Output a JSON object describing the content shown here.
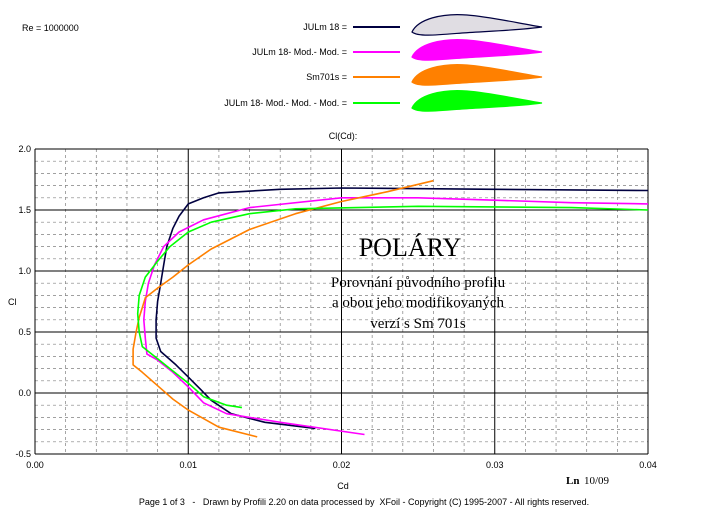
{
  "chart_data": {
    "type": "line",
    "reynolds": "Re = 1000000",
    "title": "Cl(Cd):",
    "xlabel": "Cd",
    "ylabel": "Cl",
    "xlim": [
      0.0,
      0.04
    ],
    "ylim": [
      -0.5,
      2.0
    ],
    "x_ticks": [
      0.0,
      0.01,
      0.02,
      0.03,
      0.04
    ],
    "x_tick_labels": [
      "0.00",
      "0.01",
      "0.02",
      "0.03",
      "0.04"
    ],
    "y_ticks": [
      -0.5,
      0.0,
      0.5,
      1.0,
      1.5,
      2.0
    ],
    "y_tick_labels": [
      "-0.5",
      "0.0",
      "0.5",
      "1.0",
      "1.5",
      "2.0"
    ],
    "grid": true,
    "legend_position": "top",
    "series": [
      {
        "name": "JULm 18 =",
        "color": "#000040",
        "airfoil_fill": "#e0dde3",
        "points": [
          [
            0.0183,
            -0.29
          ],
          [
            0.015,
            -0.24
          ],
          [
            0.0128,
            -0.17
          ],
          [
            0.0115,
            -0.06
          ],
          [
            0.0108,
            0.03
          ],
          [
            0.01,
            0.13
          ],
          [
            0.0092,
            0.23
          ],
          [
            0.0082,
            0.34
          ],
          [
            0.0079,
            0.45
          ],
          [
            0.0079,
            0.6
          ],
          [
            0.008,
            0.75
          ],
          [
            0.0082,
            0.9
          ],
          [
            0.0084,
            1.05
          ],
          [
            0.0086,
            1.2
          ],
          [
            0.009,
            1.35
          ],
          [
            0.0094,
            1.45
          ],
          [
            0.01,
            1.55
          ],
          [
            0.011,
            1.6
          ],
          [
            0.012,
            1.64
          ],
          [
            0.016,
            1.67
          ],
          [
            0.02,
            1.68
          ],
          [
            0.03,
            1.67
          ],
          [
            0.04,
            1.66
          ]
        ]
      },
      {
        "name": "JULm 18- Mod.- Mod. =",
        "color": "#ff00ff",
        "airfoil_fill": "#ff00ff",
        "points": [
          [
            0.0215,
            -0.34
          ],
          [
            0.016,
            -0.24
          ],
          [
            0.0125,
            -0.17
          ],
          [
            0.011,
            -0.08
          ],
          [
            0.01,
            0.05
          ],
          [
            0.009,
            0.17
          ],
          [
            0.008,
            0.27
          ],
          [
            0.0073,
            0.32
          ],
          [
            0.0072,
            0.45
          ],
          [
            0.0071,
            0.6
          ],
          [
            0.0072,
            0.75
          ],
          [
            0.0074,
            0.9
          ],
          [
            0.0078,
            1.05
          ],
          [
            0.0084,
            1.2
          ],
          [
            0.0094,
            1.32
          ],
          [
            0.011,
            1.42
          ],
          [
            0.014,
            1.52
          ],
          [
            0.02,
            1.6
          ],
          [
            0.025,
            1.6
          ],
          [
            0.03,
            1.58
          ],
          [
            0.035,
            1.56
          ],
          [
            0.04,
            1.55
          ]
        ]
      },
      {
        "name": "Sm701s =",
        "color": "#ff8000",
        "airfoil_fill": "#ff8000",
        "points": [
          [
            0.0145,
            -0.36
          ],
          [
            0.012,
            -0.28
          ],
          [
            0.01,
            -0.14
          ],
          [
            0.009,
            -0.05
          ],
          [
            0.008,
            0.06
          ],
          [
            0.007,
            0.17
          ],
          [
            0.0064,
            0.23
          ],
          [
            0.0064,
            0.36
          ],
          [
            0.0066,
            0.5
          ],
          [
            0.0068,
            0.62
          ],
          [
            0.007,
            0.7
          ],
          [
            0.0072,
            0.78
          ],
          [
            0.008,
            0.86
          ],
          [
            0.009,
            0.95
          ],
          [
            0.01,
            1.05
          ],
          [
            0.0115,
            1.18
          ],
          [
            0.014,
            1.34
          ],
          [
            0.017,
            1.47
          ],
          [
            0.02,
            1.57
          ],
          [
            0.023,
            1.65
          ],
          [
            0.026,
            1.74
          ]
        ]
      },
      {
        "name": "JULm 18- Mod.- Mod. - Mod. =",
        "color": "#00ff00",
        "airfoil_fill": "#00ff00",
        "points": [
          [
            0.0135,
            -0.12
          ],
          [
            0.0125,
            -0.1
          ],
          [
            0.011,
            -0.03
          ],
          [
            0.01,
            0.08
          ],
          [
            0.009,
            0.18
          ],
          [
            0.008,
            0.28
          ],
          [
            0.007,
            0.38
          ],
          [
            0.0068,
            0.5
          ],
          [
            0.0067,
            0.65
          ],
          [
            0.0068,
            0.8
          ],
          [
            0.0072,
            0.95
          ],
          [
            0.008,
            1.08
          ],
          [
            0.0088,
            1.2
          ],
          [
            0.01,
            1.32
          ],
          [
            0.0115,
            1.4
          ],
          [
            0.014,
            1.47
          ],
          [
            0.017,
            1.51
          ],
          [
            0.025,
            1.53
          ],
          [
            0.035,
            1.52
          ],
          [
            0.04,
            1.5
          ]
        ]
      }
    ],
    "annotation": {
      "heading": "POLÁRY",
      "lines": [
        "Porovnání původního profilu",
        "a obou jeho modifikovaných",
        "verzí s Sm 701s"
      ]
    },
    "signature": {
      "name": "Ln",
      "date": "10/09"
    },
    "footer": "Page 1 of 3   -   Drawn by Profili 2.20 on data processed by  XFoil - Copyright (C) 1995-2007 - All rights reserved."
  }
}
